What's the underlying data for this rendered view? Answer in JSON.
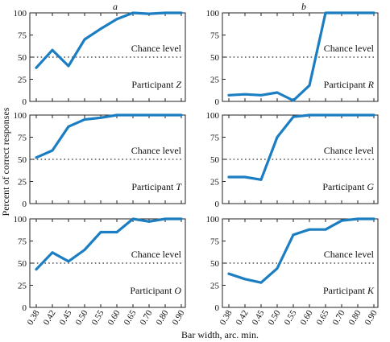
{
  "figure": {
    "ylabel": "Percent of correct responses",
    "xlabel": "Bar width, arc. min.",
    "columns": [
      "a",
      "b"
    ],
    "chance_label": "Chance level",
    "participant_prefix": "Participant",
    "line_color": "#1b7ec2",
    "chance_color": "#555555"
  },
  "chart_data": [
    {
      "type": "line",
      "column": "a",
      "row": 1,
      "participant": "Z",
      "categories": [
        "0.38",
        "0.42",
        "0.45",
        "0.50",
        "0.55",
        "0.60",
        "0.65",
        "0.70",
        "0.80",
        "0.90"
      ],
      "values": [
        38,
        58,
        40,
        70,
        82,
        93,
        100,
        99,
        100,
        100
      ],
      "chance": 50,
      "ylim": [
        0,
        100
      ],
      "yticks": [
        0,
        25,
        50,
        75,
        100
      ]
    },
    {
      "type": "line",
      "column": "b",
      "row": 1,
      "participant": "R",
      "categories": [
        "0.38",
        "0.42",
        "0.45",
        "0.50",
        "0.55",
        "0.60",
        "0.65",
        "0.70",
        "0.80",
        "0.90"
      ],
      "values": [
        7,
        8,
        7,
        10,
        1,
        18,
        100,
        100,
        100,
        100
      ],
      "chance": 50,
      "ylim": [
        0,
        100
      ],
      "yticks": [
        0,
        25,
        50,
        75,
        100
      ]
    },
    {
      "type": "line",
      "column": "a",
      "row": 2,
      "participant": "T",
      "categories": [
        "0.38",
        "0.42",
        "0.45",
        "0.50",
        "0.55",
        "0.60",
        "0.65",
        "0.70",
        "0.80",
        "0.90"
      ],
      "values": [
        52,
        60,
        87,
        95,
        97,
        100,
        100,
        100,
        100,
        100
      ],
      "chance": 50,
      "ylim": [
        0,
        100
      ],
      "yticks": [
        0,
        25,
        50,
        75,
        100
      ]
    },
    {
      "type": "line",
      "column": "b",
      "row": 2,
      "participant": "G",
      "categories": [
        "0.38",
        "0.42",
        "0.45",
        "0.50",
        "0.55",
        "0.60",
        "0.65",
        "0.70",
        "0.80",
        "0.90"
      ],
      "values": [
        30,
        30,
        27,
        75,
        98,
        100,
        100,
        100,
        100,
        100
      ],
      "chance": 50,
      "ylim": [
        0,
        100
      ],
      "yticks": [
        0,
        25,
        50,
        75,
        100
      ]
    },
    {
      "type": "line",
      "column": "a",
      "row": 3,
      "participant": "O",
      "categories": [
        "0.38",
        "0.42",
        "0.45",
        "0.50",
        "0.55",
        "0.60",
        "0.65",
        "0.70",
        "0.80",
        "0.90"
      ],
      "values": [
        43,
        62,
        52,
        65,
        85,
        85,
        100,
        97,
        100,
        100
      ],
      "chance": 50,
      "ylim": [
        0,
        100
      ],
      "yticks": [
        0,
        25,
        50,
        75,
        100
      ]
    },
    {
      "type": "line",
      "column": "b",
      "row": 3,
      "participant": "K",
      "categories": [
        "0.38",
        "0.42",
        "0.45",
        "0.50",
        "0.55",
        "0.60",
        "0.65",
        "0.70",
        "0.80",
        "0.90"
      ],
      "values": [
        38,
        32,
        28,
        44,
        82,
        88,
        88,
        98,
        100,
        100
      ],
      "chance": 50,
      "ylim": [
        0,
        100
      ],
      "yticks": [
        0,
        25,
        50,
        75,
        100
      ]
    }
  ]
}
